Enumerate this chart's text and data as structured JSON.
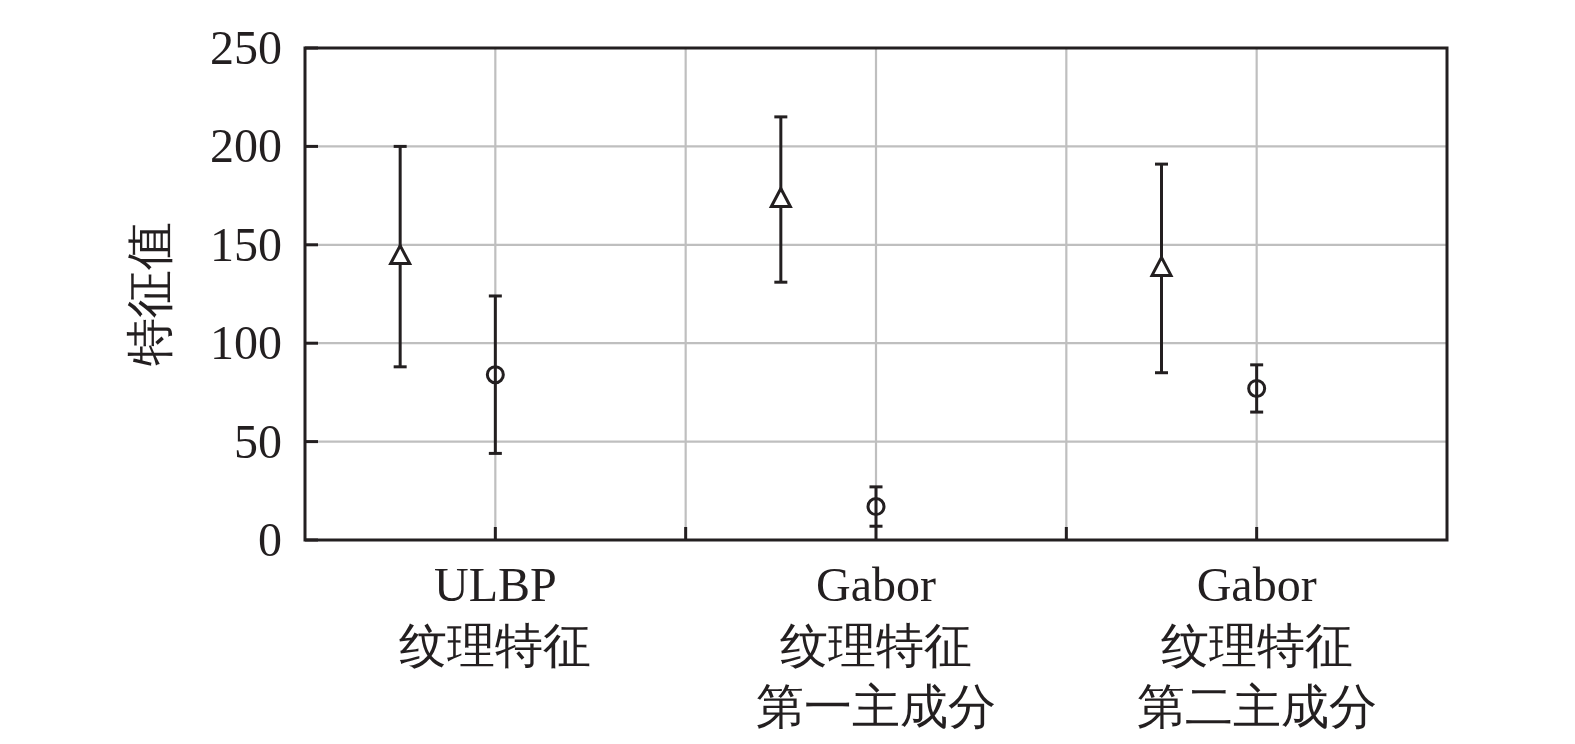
{
  "chart_data": {
    "type": "scatter",
    "ylabel": "特征值",
    "categories": [
      "ULBP\n纹理特征",
      "Gabor\n纹理特征第一主成分",
      "Gabor\n纹理特征第二主成分"
    ],
    "ylim": [
      0,
      250
    ],
    "yticks": [
      0,
      50,
      100,
      150,
      200,
      250
    ],
    "grid": true,
    "series": [
      {
        "color": "#231f20",
        "marker": "triangle",
        "values": [
          144,
          173,
          138
        ],
        "errors": [
          56,
          42,
          53
        ]
      },
      {
        "color": "#231f20",
        "marker": "circle",
        "values": [
          84,
          17,
          77
        ],
        "errors": [
          40,
          10,
          12
        ]
      }
    ]
  }
}
